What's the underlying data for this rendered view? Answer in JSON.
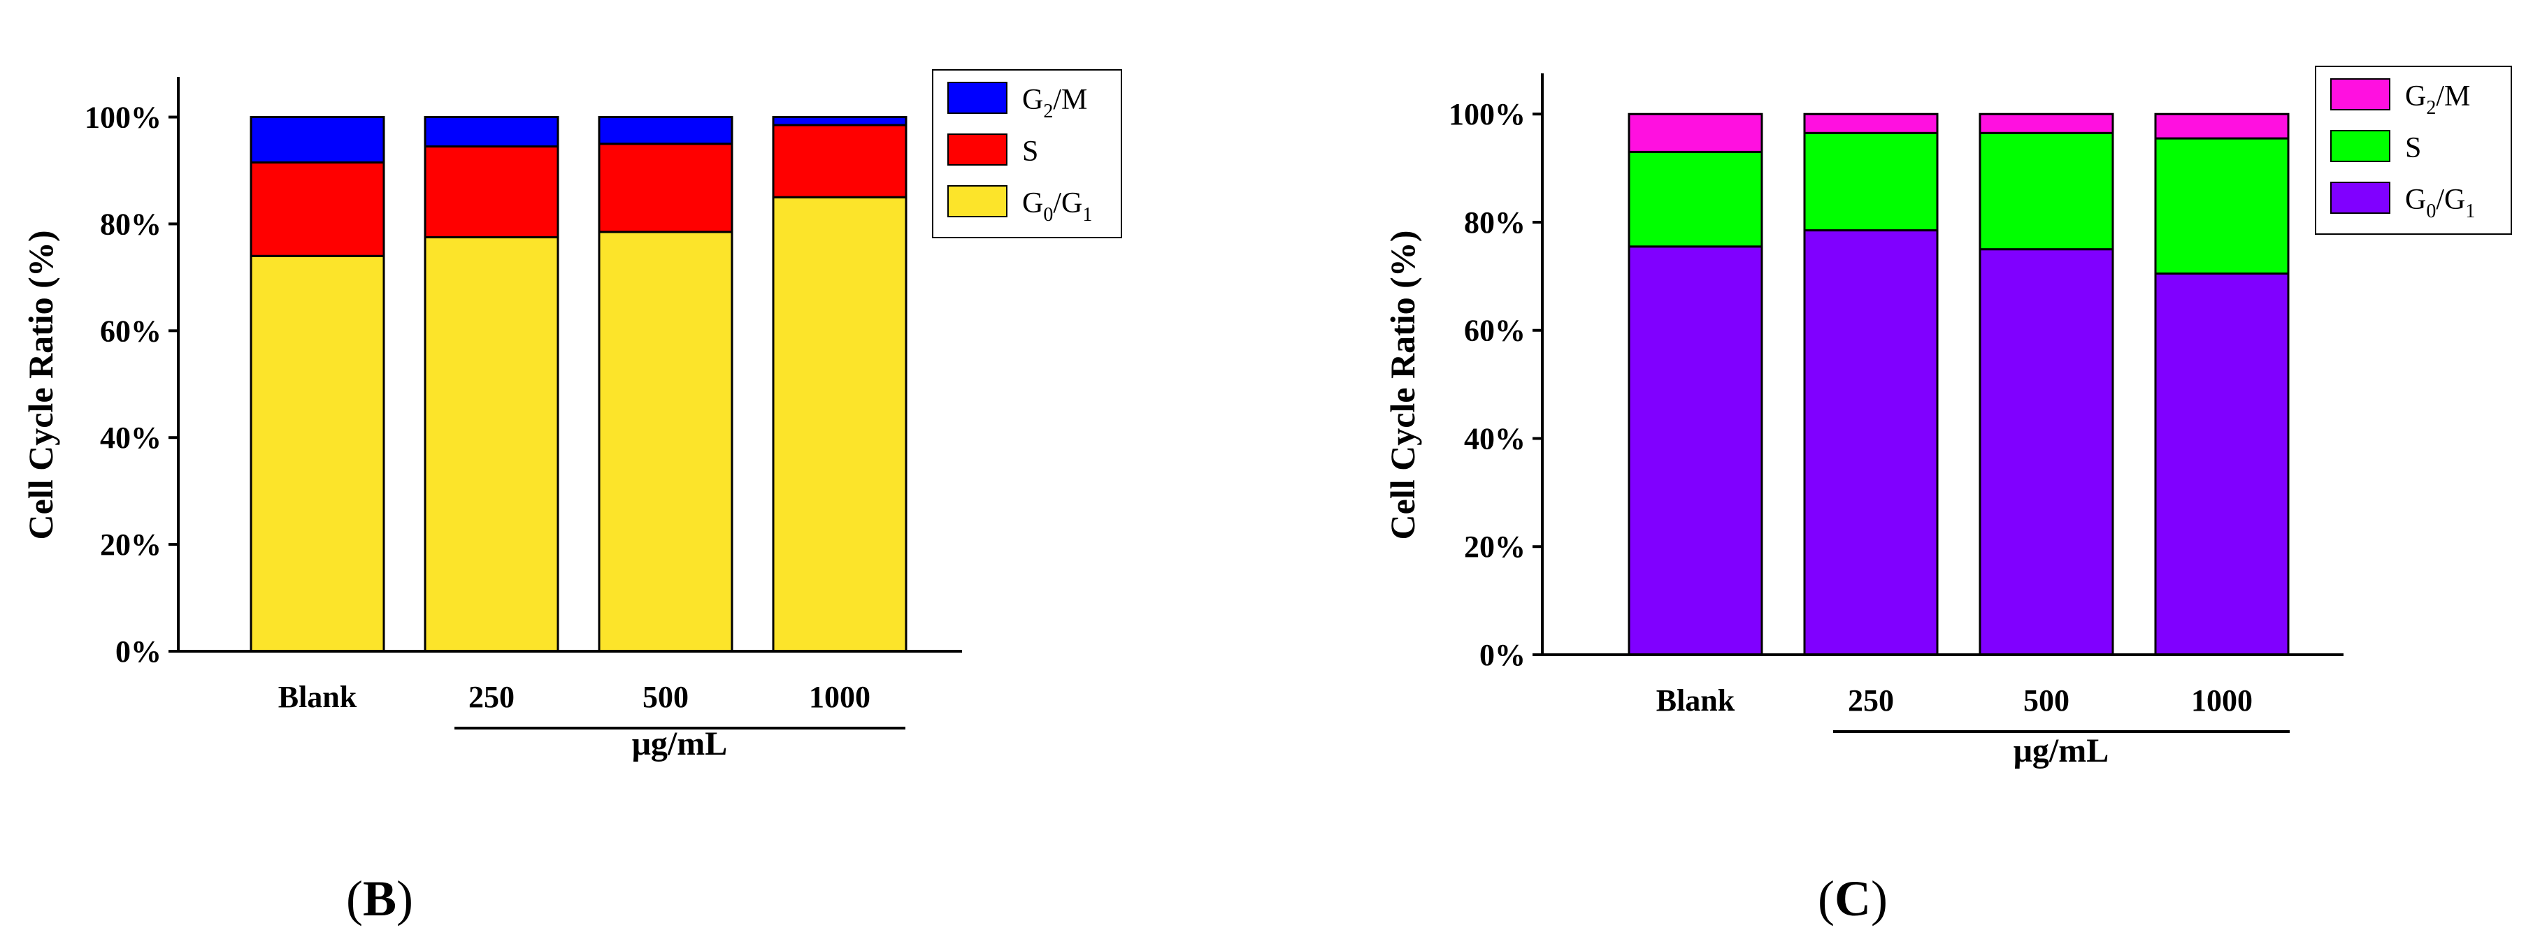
{
  "chart_data": [
    {
      "type": "bar",
      "stacked": true,
      "panel_label": "B",
      "ylabel": "Cell Cycle Ratio (%)",
      "group_label": "μg/mL",
      "categories": [
        "Blank",
        "250",
        "500",
        "1000"
      ],
      "y_ticks": [
        "0%",
        "20%",
        "40%",
        "60%",
        "80%",
        "100%"
      ],
      "ylim": [
        0,
        100
      ],
      "legend_position": "top-right",
      "series": [
        {
          "name": "G0/G1",
          "color": "#fce42a",
          "values": [
            74,
            77.5,
            78.5,
            85
          ]
        },
        {
          "name": "S",
          "color": "#ff0000",
          "values": [
            17.5,
            17,
            16.5,
            13.5
          ]
        },
        {
          "name": "G2/M",
          "color": "#0000ff",
          "values": [
            8.5,
            5.5,
            5,
            1.5
          ]
        }
      ],
      "legend": [
        {
          "base": "G",
          "sub": "2",
          "rest": "/M",
          "rest_sub": "",
          "color": "#0000ff"
        },
        {
          "base": "S",
          "sub": "",
          "rest": "",
          "rest_sub": "",
          "color": "#ff0000"
        },
        {
          "base": "G",
          "sub": "0",
          "rest": "/G",
          "rest_sub": "1",
          "color": "#fce42a"
        }
      ]
    },
    {
      "type": "bar",
      "stacked": true,
      "panel_label": "C",
      "ylabel": "Cell Cycle Ratio (%)",
      "group_label": "μg/mL",
      "categories": [
        "Blank",
        "250",
        "500",
        "1000"
      ],
      "y_ticks": [
        "0%",
        "20%",
        "40%",
        "60%",
        "80%",
        "100%"
      ],
      "ylim": [
        0,
        100
      ],
      "legend_position": "top-right",
      "series": [
        {
          "name": "G0/G1",
          "color": "#8000ff",
          "values": [
            75.5,
            78.5,
            75,
            70.5
          ]
        },
        {
          "name": "S",
          "color": "#00ff00",
          "values": [
            17.5,
            18,
            21.5,
            25
          ]
        },
        {
          "name": "G2/M",
          "color": "#ff10e0",
          "values": [
            7,
            3.5,
            3.5,
            4.5
          ]
        }
      ],
      "legend": [
        {
          "base": "G",
          "sub": "2",
          "rest": "/M",
          "rest_sub": "",
          "color": "#ff10e0"
        },
        {
          "base": "S",
          "sub": "",
          "rest": "",
          "rest_sub": "",
          "color": "#00ff00"
        },
        {
          "base": "G",
          "sub": "0",
          "rest": "/G",
          "rest_sub": "1",
          "color": "#8000ff"
        }
      ]
    }
  ]
}
